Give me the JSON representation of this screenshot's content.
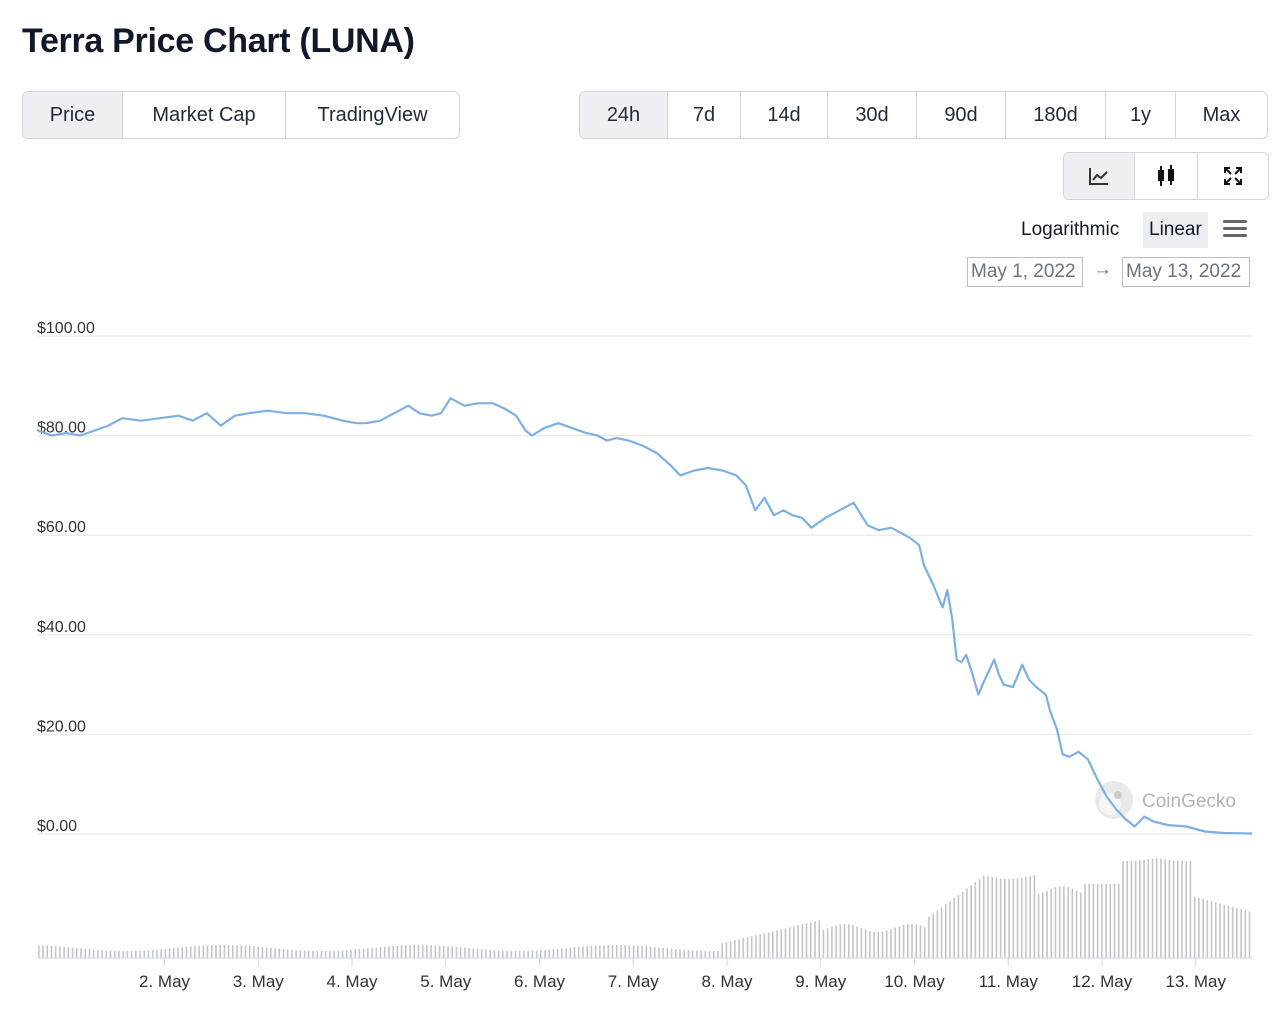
{
  "page_title": "Terra Price Chart (LUNA)",
  "view_tabs": [
    "Price",
    "Market Cap",
    "TradingView"
  ],
  "active_view": "Price",
  "range_tabs": [
    "24h",
    "7d",
    "14d",
    "30d",
    "90d",
    "180d",
    "1y",
    "Max"
  ],
  "active_range": "24h",
  "chart_type_icons": [
    "line-chart-icon",
    "candlestick-icon",
    "fullscreen-icon"
  ],
  "active_chart_type": "line-chart-icon",
  "scale": {
    "log_label": "Logarithmic",
    "linear_label": "Linear",
    "active": "Linear"
  },
  "date_range": {
    "from": "May 1, 2022",
    "arrow": "→",
    "to": "May 13, 2022"
  },
  "watermark": "CoinGecko",
  "colors": {
    "line": "#7cb0e4",
    "volume": "#c2c6cc",
    "grid": "#e6e6e6",
    "active_tab": "#eef0f3"
  },
  "chart_data": {
    "type": "line",
    "title": "",
    "x_tick_labels": [
      "2. May",
      "3. May",
      "4. May",
      "5. May",
      "6. May",
      "7. May",
      "8. May",
      "9. May",
      "10. May",
      "11. May",
      "12. May",
      "13. May"
    ],
    "y_tick_labels": [
      "$100.00",
      "$80.00",
      "$60.00",
      "$40.00",
      "$20.00",
      "$0.00"
    ],
    "ylim": [
      0,
      100
    ],
    "x_range_days": [
      0.65,
      13.6
    ],
    "grid": true,
    "series": [
      {
        "values": [
          [
            0.65,
            81
          ],
          [
            0.8,
            80
          ],
          [
            0.95,
            80.5
          ],
          [
            1.1,
            80
          ],
          [
            1.25,
            81
          ],
          [
            1.4,
            82
          ],
          [
            1.55,
            83.5
          ],
          [
            1.75,
            83
          ],
          [
            1.95,
            83.5
          ],
          [
            2.15,
            84
          ],
          [
            2.3,
            83
          ],
          [
            2.45,
            84.5
          ],
          [
            2.6,
            82
          ],
          [
            2.75,
            84
          ],
          [
            2.9,
            84.5
          ],
          [
            3.1,
            85
          ],
          [
            3.3,
            84.5
          ],
          [
            3.5,
            84.5
          ],
          [
            3.7,
            84
          ],
          [
            3.9,
            83
          ],
          [
            4.05,
            82.5
          ],
          [
            4.15,
            82.5
          ],
          [
            4.3,
            83
          ],
          [
            4.45,
            84.5
          ],
          [
            4.6,
            86
          ],
          [
            4.72,
            84.5
          ],
          [
            4.85,
            84
          ],
          [
            4.95,
            84.5
          ],
          [
            5.05,
            87.5
          ],
          [
            5.2,
            86
          ],
          [
            5.35,
            86.5
          ],
          [
            5.5,
            86.5
          ],
          [
            5.62,
            85.5
          ],
          [
            5.75,
            84
          ],
          [
            5.85,
            81
          ],
          [
            5.92,
            80
          ],
          [
            6.05,
            81.5
          ],
          [
            6.2,
            82.5
          ],
          [
            6.35,
            81.5
          ],
          [
            6.5,
            80.5
          ],
          [
            6.62,
            80
          ],
          [
            6.72,
            79
          ],
          [
            6.82,
            79.5
          ],
          [
            6.95,
            79
          ],
          [
            7.1,
            78
          ],
          [
            7.25,
            76.5
          ],
          [
            7.4,
            74
          ],
          [
            7.5,
            72
          ],
          [
            7.65,
            73
          ],
          [
            7.8,
            73.5
          ],
          [
            7.95,
            73
          ],
          [
            8.1,
            72
          ],
          [
            8.2,
            70
          ],
          [
            8.3,
            65
          ],
          [
            8.4,
            67.5
          ],
          [
            8.5,
            64
          ],
          [
            8.6,
            65
          ],
          [
            8.7,
            64
          ],
          [
            8.8,
            63.5
          ],
          [
            8.9,
            61.5
          ],
          [
            9.05,
            63.5
          ],
          [
            9.2,
            65
          ],
          [
            9.35,
            66.5
          ],
          [
            9.5,
            62
          ],
          [
            9.62,
            61
          ],
          [
            9.75,
            61.5
          ],
          [
            9.85,
            60.5
          ],
          [
            9.95,
            59.5
          ],
          [
            10.05,
            58
          ],
          [
            10.1,
            54
          ],
          [
            10.2,
            50
          ],
          [
            10.3,
            45.5
          ],
          [
            10.35,
            49
          ],
          [
            10.4,
            43.5
          ],
          [
            10.45,
            35
          ],
          [
            10.5,
            34.5
          ],
          [
            10.55,
            36
          ],
          [
            10.62,
            32
          ],
          [
            10.68,
            28
          ],
          [
            10.75,
            31
          ],
          [
            10.85,
            35
          ],
          [
            10.9,
            32
          ],
          [
            10.95,
            30
          ],
          [
            11.05,
            29.5
          ],
          [
            11.15,
            34
          ],
          [
            11.22,
            31
          ],
          [
            11.3,
            29.5
          ],
          [
            11.4,
            28
          ],
          [
            11.45,
            24.5
          ],
          [
            11.52,
            21
          ],
          [
            11.58,
            16
          ],
          [
            11.65,
            15.5
          ],
          [
            11.75,
            16.5
          ],
          [
            11.85,
            15
          ],
          [
            11.95,
            11
          ],
          [
            12.05,
            7.5
          ],
          [
            12.15,
            5
          ],
          [
            12.25,
            3
          ],
          [
            12.35,
            1.5
          ],
          [
            12.45,
            3.5
          ],
          [
            12.55,
            2.5
          ],
          [
            12.7,
            1.8
          ],
          [
            12.9,
            1.5
          ],
          [
            13.1,
            0.5
          ],
          [
            13.3,
            0.2
          ],
          [
            13.5,
            0.15
          ],
          [
            13.6,
            0.1
          ]
        ]
      }
    ]
  }
}
